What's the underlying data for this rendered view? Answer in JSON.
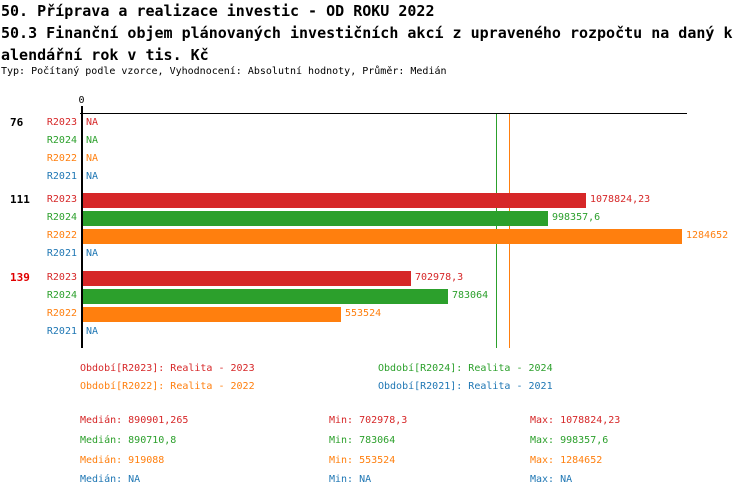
{
  "header": {
    "lines": [
      "50. Příprava a realizace investic - OD ROKU 2022",
      "50.3 Finanční objem plánovaných investičních akcí z upraveného rozpočtu na daný k",
      "alendářní rok v tis. Kč"
    ],
    "meta": "Typ: Počítaný podle vzorce, Vyhodnocení: Absolutní hodnoty, Průměr: Medián"
  },
  "chart_data": {
    "type": "bar",
    "orientation": "horizontal",
    "title": "50. Příprava a realizace investic - OD ROKU 2022",
    "subtitle": "50.3 Finanční objem plánovaných investičních akcí z upraveného rozpočtu na daný kalendářní rok v tis. Kč",
    "value_unit": "tis. Kč",
    "axis_origin_label": "0",
    "xlim": [
      0,
      1300000
    ],
    "grid": false,
    "series_colors": {
      "R2023": "#d62728",
      "R2024": "#2ca02c",
      "R2022": "#ff7f0e",
      "R2021": "#1f77b4"
    },
    "groups": [
      {
        "label": "76",
        "label_color": "#000000",
        "rows": [
          {
            "series": "R2023",
            "value": null,
            "display": "NA"
          },
          {
            "series": "R2024",
            "value": null,
            "display": "NA"
          },
          {
            "series": "R2022",
            "value": null,
            "display": "NA"
          },
          {
            "series": "R2021",
            "value": null,
            "display": "NA"
          }
        ]
      },
      {
        "label": "111",
        "label_color": "#000000",
        "rows": [
          {
            "series": "R2023",
            "value": 1078824.23,
            "display": "1078824,23"
          },
          {
            "series": "R2024",
            "value": 998357.6,
            "display": "998357,6"
          },
          {
            "series": "R2022",
            "value": 1284652,
            "display": "1284652"
          },
          {
            "series": "R2021",
            "value": null,
            "display": "NA"
          }
        ]
      },
      {
        "label": "139",
        "label_color": "#e00000",
        "rows": [
          {
            "series": "R2023",
            "value": 702978.3,
            "display": "702978,3"
          },
          {
            "series": "R2024",
            "value": 783064,
            "display": "783064"
          },
          {
            "series": "R2022",
            "value": 553524,
            "display": "553524"
          },
          {
            "series": "R2021",
            "value": null,
            "display": "NA"
          }
        ]
      }
    ],
    "median_lines": [
      {
        "series": "R2023",
        "value": 890901.265,
        "color": "#d62728"
      },
      {
        "series": "R2024",
        "value": 890710.8,
        "color": "#2ca02c"
      },
      {
        "series": "R2022",
        "value": 919088,
        "color": "#ff7f0e"
      },
      {
        "series": "R2021",
        "value": null,
        "color": "#1f77b4"
      }
    ]
  },
  "legend": {
    "items": [
      {
        "text": "Období[R2023]: Realita - 2023",
        "color": "#d62728"
      },
      {
        "text": "Období[R2024]: Realita - 2024",
        "color": "#2ca02c"
      },
      {
        "text": "Období[R2022]: Realita - 2022",
        "color": "#ff7f0e"
      },
      {
        "text": "Období[R2021]: Realita - 2021",
        "color": "#1f77b4"
      }
    ]
  },
  "stats": {
    "rows": [
      {
        "color": "#d62728",
        "median": "Medián: 890901,265",
        "min": "Min: 702978,3",
        "max": "Max: 1078824,23"
      },
      {
        "color": "#2ca02c",
        "median": "Medián: 890710,8",
        "min": "Min: 783064",
        "max": "Max: 998357,6"
      },
      {
        "color": "#ff7f0e",
        "median": "Medián: 919088",
        "min": "Min: 553524",
        "max": "Max: 1284652"
      },
      {
        "color": "#1f77b4",
        "median": "Medián: NA",
        "min": "Min: NA",
        "max": "Max: NA"
      }
    ]
  }
}
